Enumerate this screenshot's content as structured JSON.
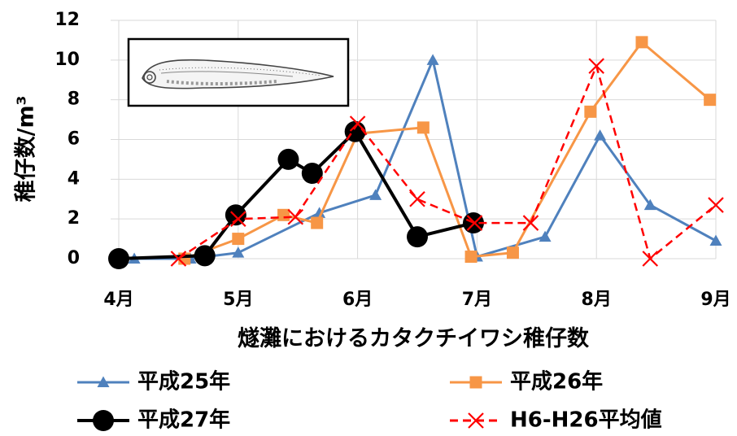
{
  "chart_data": {
    "type": "line",
    "xlabel": "燧灘におけるカタクチイワシ稚仔数",
    "ylabel": "稚仔数/m³",
    "ylim": [
      0,
      12
    ],
    "yticks": [
      0,
      2,
      4,
      6,
      8,
      10,
      12
    ],
    "xlim": [
      4,
      9
    ],
    "xticks": [
      {
        "value": 4,
        "label": "4月"
      },
      {
        "value": 5,
        "label": "5月"
      },
      {
        "value": 6,
        "label": "6月"
      },
      {
        "value": 7,
        "label": "7月"
      },
      {
        "value": 8,
        "label": "8月"
      },
      {
        "value": 9,
        "label": "9月"
      }
    ],
    "legend_position": "bottom",
    "inset": "larva illustration (top-left)",
    "series": [
      {
        "name": "平成25年",
        "color": "#4F81BD",
        "marker": "triangle",
        "line": "solid",
        "points": [
          [
            4.13,
            0.0
          ],
          [
            4.6,
            0.0
          ],
          [
            5.0,
            0.3
          ],
          [
            5.68,
            2.3
          ],
          [
            6.15,
            3.2
          ],
          [
            6.63,
            10.0
          ],
          [
            7.0,
            0.1
          ],
          [
            7.57,
            1.1
          ],
          [
            8.03,
            6.2
          ],
          [
            8.45,
            2.7
          ],
          [
            9.0,
            0.9
          ]
        ]
      },
      {
        "name": "平成26年",
        "color": "#F79646",
        "marker": "square",
        "line": "solid",
        "points": [
          [
            4.55,
            0.0
          ],
          [
            5.0,
            1.0
          ],
          [
            5.38,
            2.2
          ],
          [
            5.66,
            1.8
          ],
          [
            6.0,
            6.3
          ],
          [
            6.55,
            6.6
          ],
          [
            6.95,
            0.1
          ],
          [
            7.3,
            0.3
          ],
          [
            7.95,
            7.4
          ],
          [
            8.38,
            10.9
          ],
          [
            8.95,
            8.0
          ]
        ]
      },
      {
        "name": "平成27年",
        "color": "#000000",
        "marker": "circle",
        "line": "solid",
        "points": [
          [
            4.0,
            0.0
          ],
          [
            4.72,
            0.15
          ],
          [
            4.98,
            2.2
          ],
          [
            5.42,
            5.0
          ],
          [
            5.62,
            4.3
          ],
          [
            5.98,
            6.4
          ],
          [
            6.5,
            1.1
          ],
          [
            6.97,
            1.8
          ]
        ]
      },
      {
        "name": "H6-H26平均値",
        "color": "#FF0000",
        "marker": "x",
        "line": "dashed",
        "points": [
          [
            4.5,
            0.0
          ],
          [
            5.0,
            2.0
          ],
          [
            5.48,
            2.1
          ],
          [
            6.0,
            6.8
          ],
          [
            6.5,
            3.0
          ],
          [
            6.98,
            1.8
          ],
          [
            7.45,
            1.8
          ],
          [
            8.0,
            9.7
          ],
          [
            8.45,
            0.0
          ],
          [
            9.0,
            2.7
          ]
        ]
      }
    ]
  }
}
